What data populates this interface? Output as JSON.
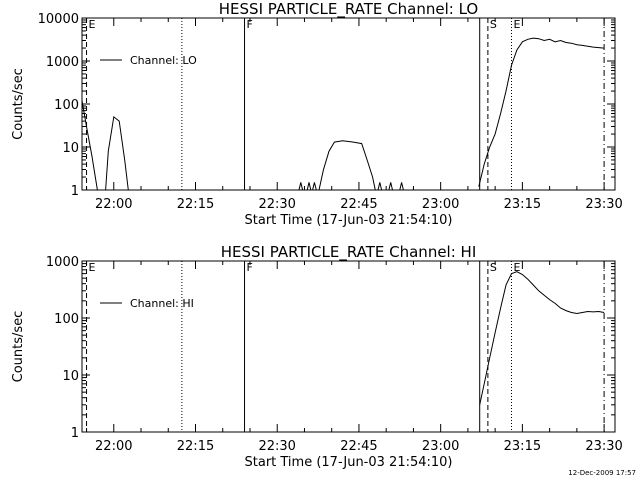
{
  "footer_timestamp": "12-Dec-2009 17:57",
  "chart_data": [
    {
      "type": "line",
      "title": "HESSI PARTICLE_RATE Channel: LO",
      "xlabel": "Start Time (17-Jun-03 21:54:10)",
      "ylabel": "Counts/sec",
      "y_scale": "log",
      "ylim": [
        1,
        10000
      ],
      "xlim": [
        "21:54:10",
        "23:32:00"
      ],
      "x_ticks": [
        "22:00",
        "22:15",
        "22:30",
        "22:45",
        "23:00",
        "23:15",
        "23:30"
      ],
      "y_ticks": [
        "1",
        "10",
        "100",
        "1000",
        "10000"
      ],
      "legend": {
        "entries": [
          "Channel: LO"
        ],
        "position": "top-left"
      },
      "series": [
        {
          "name": "Channel: LO",
          "segments": [
            {
              "x": [
                "21:54:10",
                "21:55:00",
                "21:56:00",
                "21:57:00"
              ],
              "y": [
                120,
                30,
                6,
                1
              ]
            },
            {
              "x": [
                "21:58:30",
                "21:59:00",
                "22:00:00",
                "22:01:00",
                "22:02:00",
                "22:02:40"
              ],
              "y": [
                1,
                8,
                50,
                40,
                5,
                1
              ]
            },
            {
              "x": [
                "22:34:00",
                "22:34:20",
                "22:34:40"
              ],
              "y": [
                1,
                1.5,
                1
              ]
            },
            {
              "x": [
                "22:35:30",
                "22:35:50",
                "22:36:10"
              ],
              "y": [
                1,
                1.5,
                1
              ]
            },
            {
              "x": [
                "22:36:30",
                "22:36:50",
                "22:37:10"
              ],
              "y": [
                1,
                1.5,
                1
              ]
            },
            {
              "x": [
                "22:37:40",
                "22:38:30",
                "22:39:30",
                "22:40:30",
                "22:42:00",
                "22:44:00",
                "22:45:30",
                "22:46:30",
                "22:47:30",
                "22:48:00"
              ],
              "y": [
                1,
                3,
                8,
                13,
                14,
                13,
                12,
                5,
                2,
                1
              ]
            },
            {
              "x": [
                "22:48:30",
                "22:48:50",
                "22:49:10"
              ],
              "y": [
                1,
                1.5,
                1
              ]
            },
            {
              "x": [
                "22:50:30",
                "22:50:50",
                "22:51:10"
              ],
              "y": [
                1,
                1.5,
                1
              ]
            },
            {
              "x": [
                "22:52:30",
                "22:52:50",
                "22:53:10"
              ],
              "y": [
                1,
                1.5,
                1
              ]
            },
            {
              "x": [
                "23:07:00",
                "23:08:00",
                "23:09:00",
                "23:10:00",
                "23:11:00",
                "23:12:00",
                "23:13:00",
                "23:14:00",
                "23:15:00",
                "23:16:00",
                "23:17:00",
                "23:18:00",
                "23:19:00",
                "23:20:00",
                "23:21:00",
                "23:22:00",
                "23:23:00",
                "23:24:00",
                "23:25:00",
                "23:26:00",
                "23:27:00",
                "23:28:00",
                "23:29:00",
                "23:30:00"
              ],
              "y": [
                1.2,
                4,
                10,
                20,
                60,
                200,
                800,
                1800,
                2800,
                3200,
                3400,
                3300,
                3000,
                3200,
                2800,
                3000,
                2700,
                2600,
                2400,
                2300,
                2200,
                2100,
                2050,
                2000
              ]
            }
          ]
        }
      ],
      "markers": [
        {
          "x": "21:55:00",
          "style": "dashed",
          "label": "E"
        },
        {
          "x": "22:12:30",
          "style": "dotted",
          "label": ""
        },
        {
          "x": "22:24:00",
          "style": "solid",
          "label": "F"
        },
        {
          "x": "23:07:10",
          "style": "solid",
          "label": ""
        },
        {
          "x": "23:08:40",
          "style": "dashed",
          "label": "S"
        },
        {
          "x": "23:13:00",
          "style": "dotted",
          "label": "E"
        },
        {
          "x": "23:30:00",
          "style": "dashdot",
          "label": ""
        }
      ]
    },
    {
      "type": "line",
      "title": "HESSI PARTICLE_RATE Channel: HI",
      "xlabel": "Start Time (17-Jun-03 21:54:10)",
      "ylabel": "Counts/sec",
      "y_scale": "log",
      "ylim": [
        1,
        1000
      ],
      "xlim": [
        "21:54:10",
        "23:32:00"
      ],
      "x_ticks": [
        "22:00",
        "22:15",
        "22:30",
        "22:45",
        "23:00",
        "23:15",
        "23:30"
      ],
      "y_ticks": [
        "1",
        "10",
        "100",
        "1000"
      ],
      "legend": {
        "entries": [
          "Channel: HI"
        ],
        "position": "top-left"
      },
      "series": [
        {
          "name": "Channel: HI",
          "segments": [
            {
              "x": [
                "23:07:10",
                "23:08:00",
                "23:09:00",
                "23:10:00",
                "23:11:00",
                "23:12:00",
                "23:13:00",
                "23:14:00",
                "23:15:00",
                "23:16:00",
                "23:17:00",
                "23:18:00",
                "23:19:00",
                "23:20:00",
                "23:21:00",
                "23:22:00",
                "23:23:00",
                "23:24:00",
                "23:25:00",
                "23:26:00",
                "23:27:00",
                "23:28:00",
                "23:29:00",
                "23:30:00"
              ],
              "y": [
                3,
                7,
                20,
                55,
                150,
                380,
                600,
                650,
                580,
                480,
                380,
                300,
                250,
                210,
                180,
                150,
                135,
                125,
                120,
                125,
                130,
                128,
                130,
                125
              ]
            }
          ]
        }
      ],
      "markers": [
        {
          "x": "21:55:00",
          "style": "dashed",
          "label": "E"
        },
        {
          "x": "22:12:30",
          "style": "dotted",
          "label": ""
        },
        {
          "x": "22:24:00",
          "style": "solid",
          "label": "F"
        },
        {
          "x": "23:07:10",
          "style": "solid",
          "label": ""
        },
        {
          "x": "23:08:40",
          "style": "dashed",
          "label": "S"
        },
        {
          "x": "23:13:00",
          "style": "dotted",
          "label": "E"
        },
        {
          "x": "23:30:00",
          "style": "dashdot",
          "label": ""
        }
      ]
    }
  ]
}
